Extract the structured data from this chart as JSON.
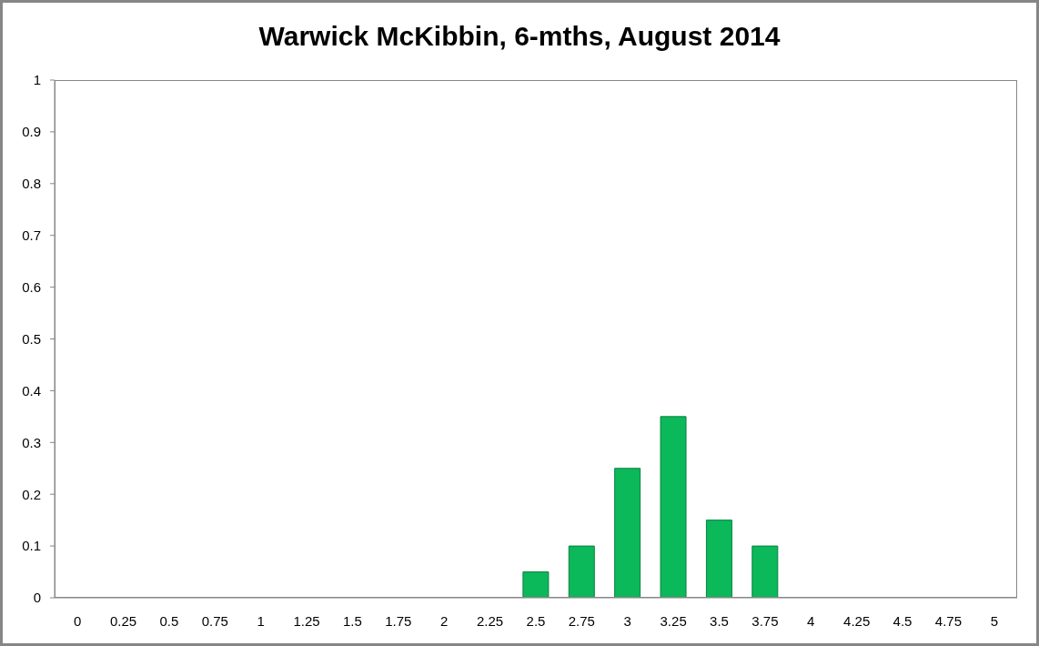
{
  "chart_data": {
    "type": "bar",
    "title": "Warwick McKibbin, 6-mths, August 2014",
    "categories": [
      "0",
      "0.25",
      "0.5",
      "0.75",
      "1",
      "1.25",
      "1.5",
      "1.75",
      "2",
      "2.25",
      "2.5",
      "2.75",
      "3",
      "3.25",
      "3.5",
      "3.75",
      "4",
      "4.25",
      "4.5",
      "4.75",
      "5"
    ],
    "values": [
      0,
      0,
      0,
      0,
      0,
      0,
      0,
      0,
      0,
      0,
      0.05,
      0.1,
      0.25,
      0.35,
      0.15,
      0.1,
      0,
      0,
      0,
      0,
      0
    ],
    "color": "#0bb85a",
    "ylim": [
      0,
      1
    ],
    "yticks": [
      0,
      0.1,
      0.2,
      0.3,
      0.4,
      0.5,
      0.6,
      0.7,
      0.8,
      0.9,
      1
    ]
  }
}
